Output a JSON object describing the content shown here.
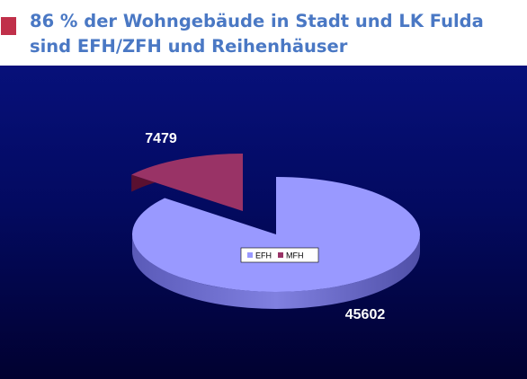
{
  "title": "86 % der Wohngebäude in Stadt und LK Fulda sind EFH/ZFH und Reihenhäuser",
  "colors": {
    "title": "#4a78c4",
    "marker": "#c0304a",
    "background_top": "#07107a",
    "background_bottom": "#010130",
    "efh": "#9999ff",
    "mfh": "#993366"
  },
  "chart_data": {
    "type": "pie",
    "style": "3d-exploded",
    "categories": [
      "EFH",
      "MFH"
    ],
    "values": [
      45602,
      7479
    ],
    "data_labels": [
      "45602",
      "7479"
    ],
    "legend": {
      "placement": "inside-center",
      "entries": [
        "EFH",
        "MFH"
      ]
    }
  }
}
